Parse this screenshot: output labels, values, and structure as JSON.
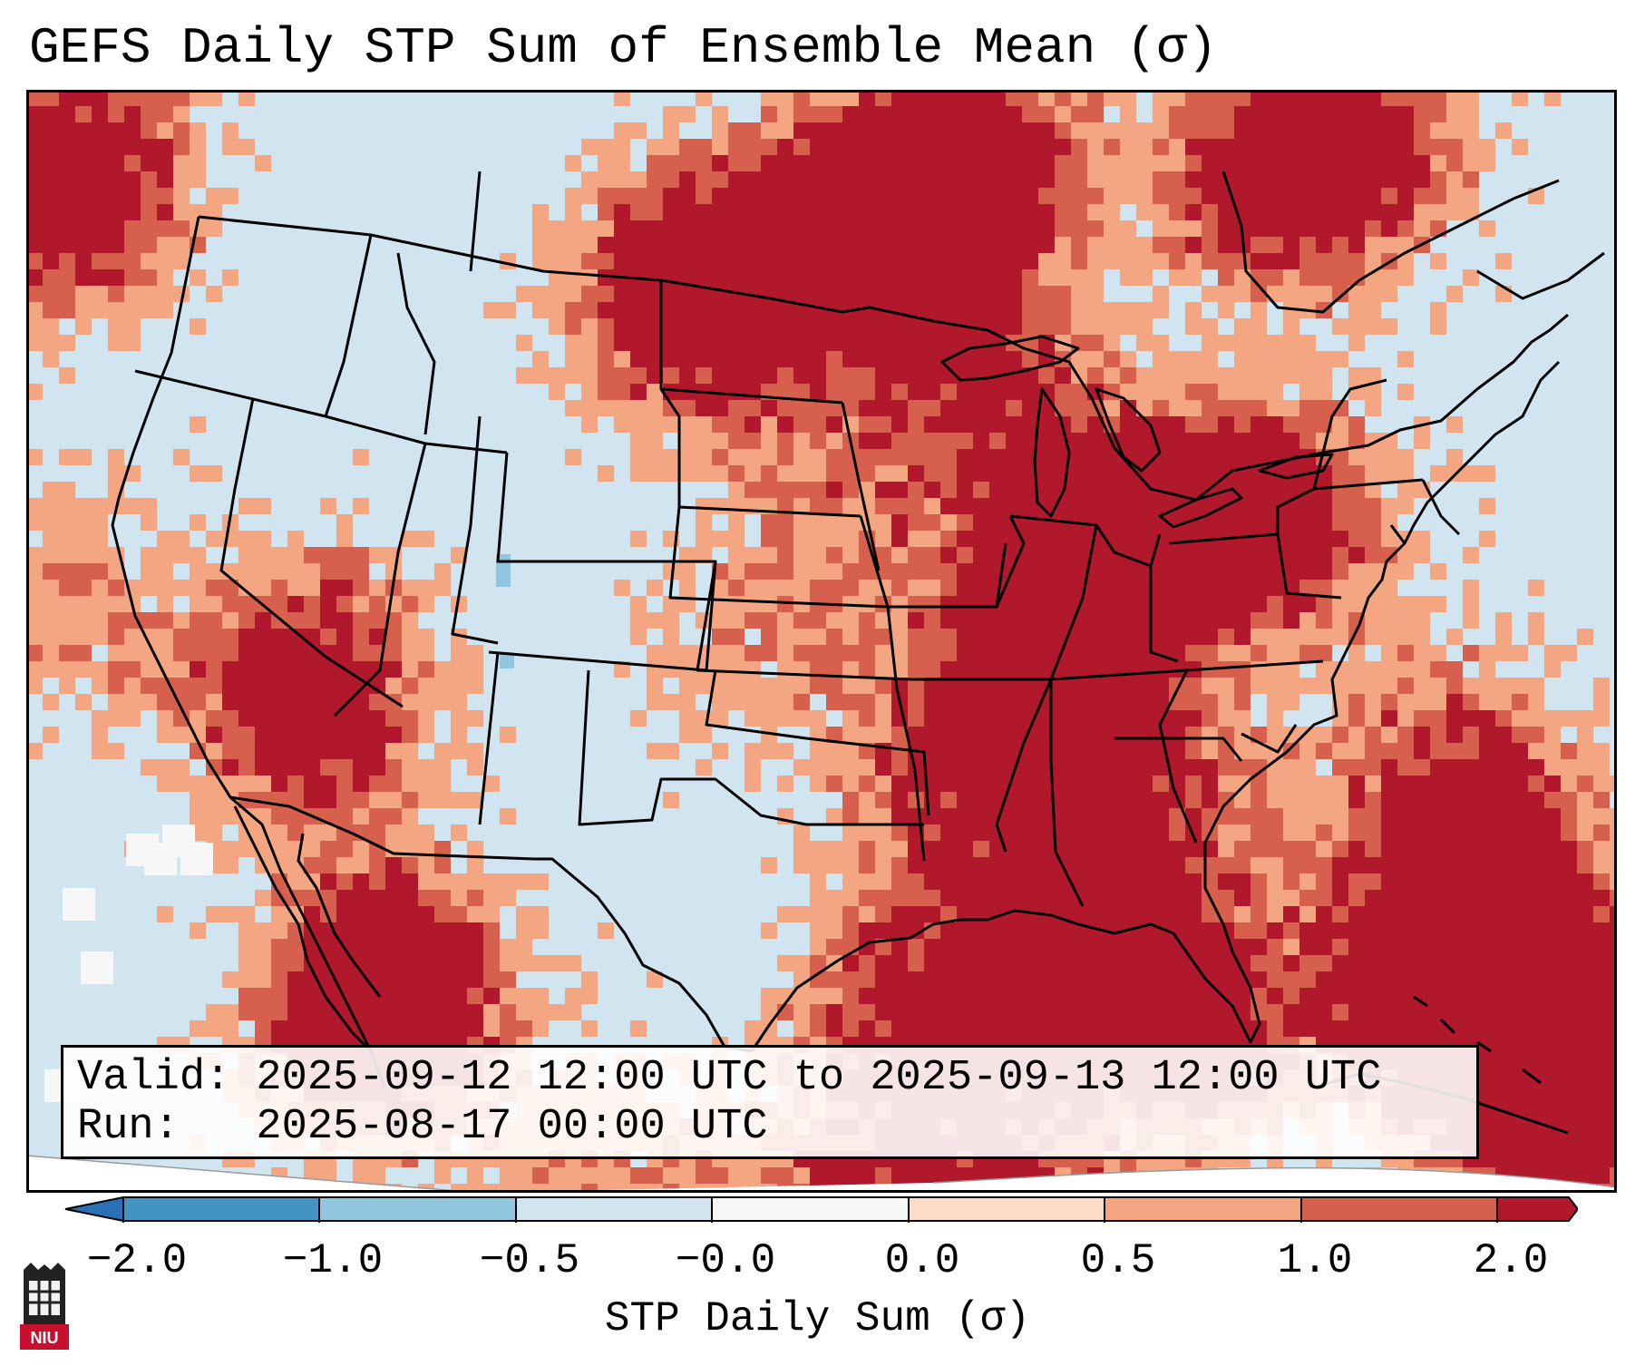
{
  "title": "GEFS Daily STP Sum of Ensemble Mean (σ)",
  "info": {
    "valid": "Valid: 2025-09-12 12:00 UTC to 2025-09-13 12:00 UTC",
    "run": "Run:   2025-08-17 00:00 UTC"
  },
  "colorbar": {
    "label": "STP Daily Sum (σ)",
    "ticks": [
      "−2.0",
      "−1.0",
      "−0.5",
      "−0.0",
      "0.0",
      "0.5",
      "1.0",
      "2.0"
    ],
    "colors": [
      "#2b6fb5",
      "#4393c3",
      "#92c5de",
      "#d1e5f0",
      "#f7f7f7",
      "#fddbc7",
      "#f4a582",
      "#d6604d",
      "#b2182b"
    ]
  },
  "map": {
    "background_color": "#d1e5f0",
    "outline_color": "#000000"
  },
  "logo": {
    "text": "NIU"
  }
}
